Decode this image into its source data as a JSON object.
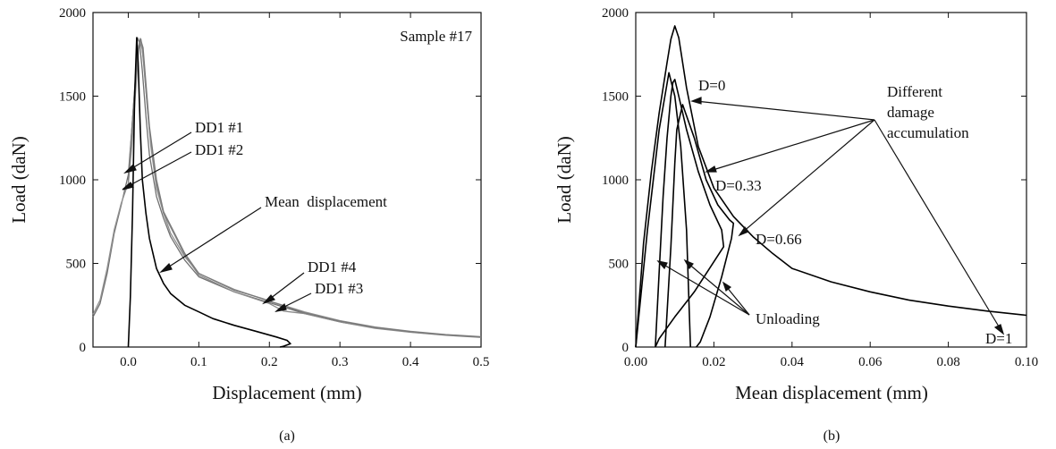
{
  "chart_data": [
    {
      "type": "line",
      "panel_label": "(a)",
      "xlabel": "Displacement (mm)",
      "ylabel": "Load (daN)",
      "xlim": [
        -0.05,
        0.5
      ],
      "ylim": [
        0,
        2000
      ],
      "xticks": [
        0.0,
        0.1,
        0.2,
        0.3,
        0.4,
        0.5
      ],
      "xtick_labels": [
        "0.0",
        "0.1",
        "0.2",
        "0.3",
        "0.4",
        "0.5"
      ],
      "yticks": [
        0,
        500,
        1000,
        1500,
        2000
      ],
      "ytick_labels": [
        "0",
        "500",
        "1000",
        "1500",
        "2000"
      ],
      "grid": false,
      "sample_label": "Sample #17",
      "series": [
        {
          "name": "DD1 #1",
          "color": "#707070",
          "x": [
            -0.05,
            -0.04,
            -0.03,
            -0.02,
            -0.01,
            0.0,
            0.005,
            0.01,
            0.013,
            0.016,
            0.02,
            0.025,
            0.03,
            0.04,
            0.05,
            0.06,
            0.08,
            0.1,
            0.15,
            0.2,
            0.25,
            0.3,
            0.35,
            0.4,
            0.45,
            0.5
          ],
          "y": [
            180,
            260,
            440,
            680,
            850,
            1030,
            1300,
            1600,
            1850,
            1820,
            1650,
            1380,
            1150,
            900,
            770,
            660,
            520,
            420,
            330,
            265,
            200,
            150,
            115,
            90,
            72,
            60
          ]
        },
        {
          "name": "DD1 #2",
          "color": "#909090",
          "x": [
            -0.05,
            -0.04,
            -0.03,
            -0.02,
            -0.01,
            0.0,
            0.005,
            0.01,
            0.015,
            0.018,
            0.022,
            0.027,
            0.032,
            0.04,
            0.05,
            0.06,
            0.08,
            0.1,
            0.15,
            0.2,
            0.25,
            0.3,
            0.35,
            0.4,
            0.45,
            0.5
          ],
          "y": [
            195,
            280,
            470,
            700,
            860,
            980,
            1200,
            1500,
            1800,
            1840,
            1700,
            1430,
            1200,
            950,
            800,
            680,
            540,
            440,
            345,
            275,
            210,
            158,
            120,
            94,
            75,
            62
          ]
        },
        {
          "name": "DD1 #3",
          "color": "#8a8a8a",
          "x": [
            0.0,
            0.005,
            0.012,
            0.016,
            0.02,
            0.03,
            0.04,
            0.05,
            0.08,
            0.1,
            0.15,
            0.2,
            0.22,
            0.24,
            0.25,
            0.3,
            0.35,
            0.4,
            0.45,
            0.5
          ],
          "y": [
            980,
            1300,
            1700,
            1830,
            1780,
            1300,
            980,
            800,
            550,
            430,
            330,
            260,
            215,
            205,
            200,
            150,
            112,
            88,
            70,
            58
          ]
        },
        {
          "name": "DD1 #4",
          "color": "#7a7a7a",
          "x": [
            0.0,
            0.006,
            0.013,
            0.017,
            0.021,
            0.03,
            0.04,
            0.05,
            0.08,
            0.1,
            0.15,
            0.19,
            0.2,
            0.25,
            0.3,
            0.35,
            0.4,
            0.45,
            0.5
          ],
          "y": [
            1000,
            1350,
            1750,
            1845,
            1790,
            1320,
            1000,
            810,
            560,
            440,
            340,
            290,
            275,
            205,
            155,
            118,
            92,
            73,
            60
          ]
        },
        {
          "name": "Mean displacement",
          "color": "#000000",
          "x": [
            0.0,
            0.003,
            0.006,
            0.009,
            0.012,
            0.014,
            0.017,
            0.02,
            0.025,
            0.03,
            0.04,
            0.05,
            0.06,
            0.08,
            0.1,
            0.12,
            0.15,
            0.18,
            0.21,
            0.225,
            0.23,
            0.22,
            0.215
          ],
          "y": [
            0,
            300,
            800,
            1500,
            1850,
            1700,
            1300,
            1000,
            800,
            650,
            470,
            380,
            320,
            250,
            210,
            170,
            130,
            95,
            60,
            40,
            20,
            5,
            0
          ]
        }
      ],
      "annotations": [
        "DD1 #1",
        "DD1 #2",
        "Mean  displacement",
        "DD1 #4",
        "DD1 #3"
      ]
    },
    {
      "type": "line",
      "panel_label": "(b)",
      "xlabel": "Mean displacement (mm)",
      "ylabel": "Load (daN)",
      "xlim": [
        0.0,
        0.1
      ],
      "ylim": [
        0,
        2000
      ],
      "xticks": [
        0.0,
        0.02,
        0.04,
        0.06,
        0.08,
        0.1
      ],
      "xtick_labels": [
        "0.00",
        "0.02",
        "0.04",
        "0.06",
        "0.08",
        "0.10"
      ],
      "yticks": [
        0,
        500,
        1000,
        1500,
        2000
      ],
      "ytick_labels": [
        "0",
        "500",
        "1000",
        "1500",
        "2000"
      ],
      "grid": false,
      "series": [
        {
          "name": "D=0",
          "color": "#000000",
          "x": [
            0.0,
            0.002,
            0.004,
            0.006,
            0.008,
            0.009,
            0.01,
            0.011,
            0.013,
            0.016,
            0.02,
            0.025,
            0.03,
            0.035,
            0.04,
            0.05,
            0.06,
            0.07,
            0.08,
            0.09,
            0.1
          ],
          "y": [
            0,
            620,
            1050,
            1400,
            1700,
            1840,
            1920,
            1850,
            1550,
            1200,
            950,
            780,
            660,
            560,
            470,
            390,
            330,
            280,
            245,
            215,
            190
          ]
        },
        {
          "name": "Unloading D=0.33",
          "color": "#000000",
          "x": [
            0.005,
            0.006,
            0.007,
            0.008,
            0.009,
            0.0095,
            0.01,
            0.011,
            0.013,
            0.016,
            0.019,
            0.022,
            0.0225,
            0.015,
            0.01,
            0.006,
            0.005
          ],
          "y": [
            0,
            450,
            900,
            1250,
            1500,
            1580,
            1600,
            1500,
            1300,
            1050,
            850,
            700,
            600,
            330,
            180,
            50,
            0
          ]
        },
        {
          "name": "Unloading D=0.66",
          "color": "#000000",
          "x": [
            0.0075,
            0.009,
            0.01,
            0.0105,
            0.012,
            0.015,
            0.018,
            0.021,
            0.024,
            0.025,
            0.0245,
            0.022,
            0.019,
            0.0165,
            0.0155
          ],
          "y": [
            0,
            600,
            1100,
            1300,
            1450,
            1250,
            1000,
            850,
            760,
            740,
            650,
            420,
            180,
            30,
            0
          ]
        },
        {
          "name": "Unloading D=1",
          "color": "#000000",
          "x": [
            0.0,
            0.003,
            0.006,
            0.0085,
            0.01,
            0.0115,
            0.013,
            0.014
          ],
          "y": [
            0,
            700,
            1300,
            1640,
            1500,
            1200,
            700,
            0
          ]
        }
      ],
      "annotations": [
        "Different damage accumulation",
        "D=0",
        "D=0.33",
        "D=0.66",
        "D=1",
        "Unloading"
      ]
    }
  ],
  "captions": [
    "(a)",
    "(b)"
  ]
}
